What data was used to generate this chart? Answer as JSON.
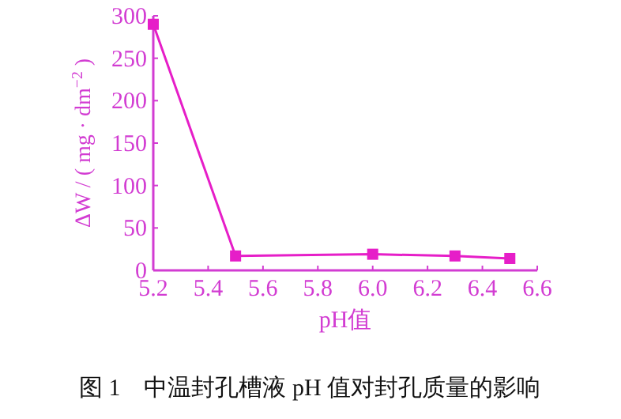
{
  "chart_data": {
    "type": "line",
    "xlabel": "pH值",
    "ylabel": "ΔW / ( mg · dm$^{−2}$ )",
    "x": [
      5.2,
      5.5,
      6.0,
      6.3,
      6.5
    ],
    "series": [
      {
        "color": "#e61ec8",
        "values": [
          290,
          17,
          19,
          17,
          14
        ]
      }
    ],
    "xlim": [
      5.2,
      6.6
    ],
    "xticks": [
      5.2,
      5.4,
      5.6,
      5.8,
      {
        "value": 6.0,
        "label": "6.0"
      },
      6.2,
      6.4,
      6.6
    ],
    "ylim": [
      0,
      300
    ],
    "yticks": [
      0,
      50,
      100,
      150,
      200,
      250,
      300
    ],
    "marker": "square",
    "line_style": "solid",
    "grid": false,
    "annotations": [
      "图 1　中温封孔槽液 pH 值对封孔质量的影响"
    ]
  }
}
